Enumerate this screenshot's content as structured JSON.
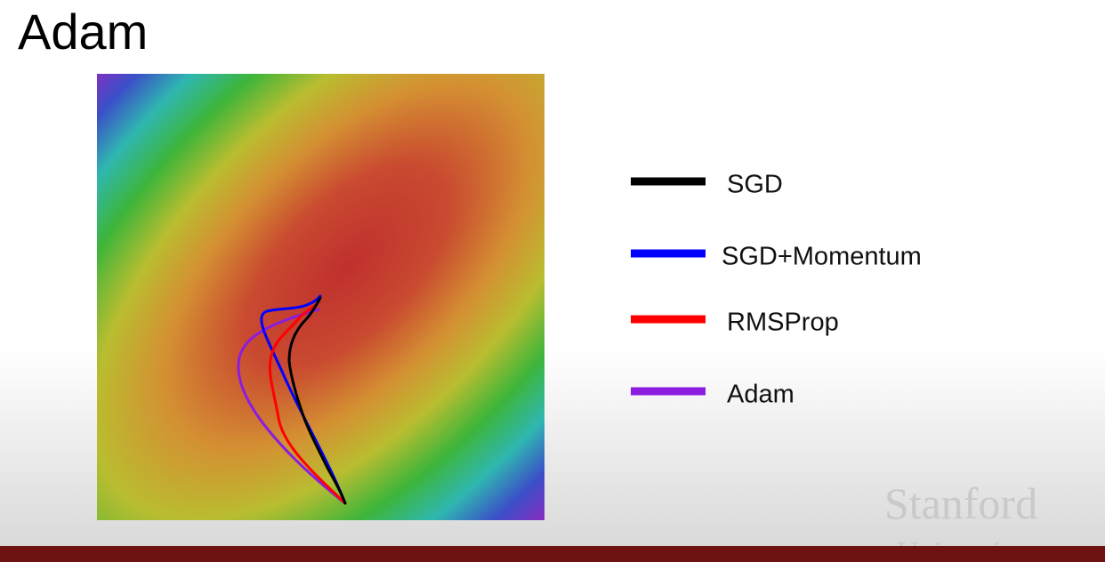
{
  "slide": {
    "title": "Adam",
    "legend": [
      {
        "label": "SGD",
        "color": "#000000"
      },
      {
        "label": "SGD+Momentum",
        "color": "#0000ff"
      },
      {
        "label": "RMSProp",
        "color": "#ff0000"
      },
      {
        "label": "Adam",
        "color": "#8a1de0"
      }
    ],
    "watermark": [
      "Stanford",
      "University"
    ]
  }
}
